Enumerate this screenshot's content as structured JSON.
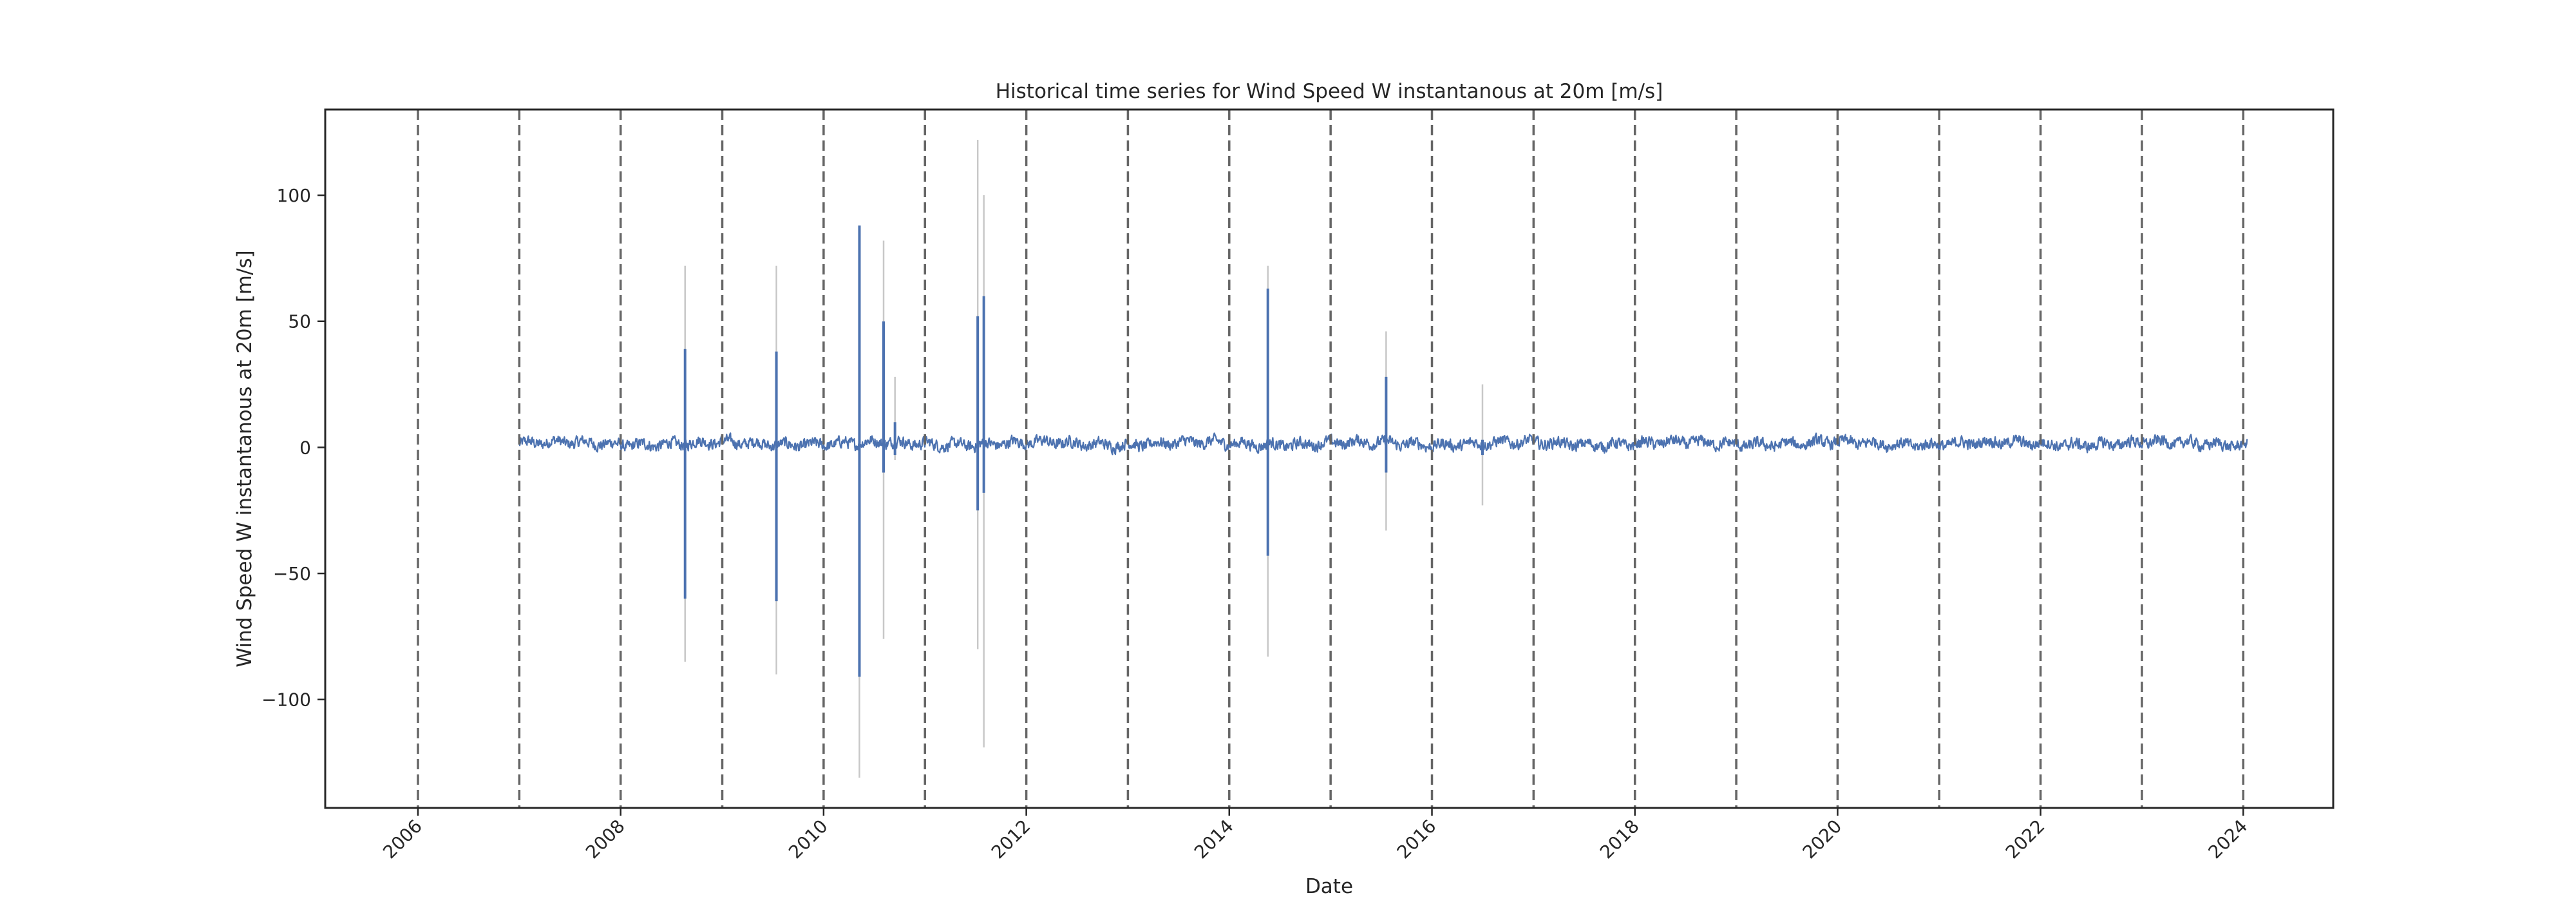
{
  "chart_data": {
    "type": "line",
    "title": "Historical time series for Wind Speed W instantanous at 20m [m/s]",
    "xlabel": "Date",
    "ylabel": "Wind Speed W instantanous at 20m [m/s]",
    "xlim": [
      "2005-02-01",
      "2024-11-20"
    ],
    "ylim": [
      -143,
      134
    ],
    "x_ticks": [
      "2006",
      "2008",
      "2010",
      "2012",
      "2014",
      "2016",
      "2018",
      "2020",
      "2022",
      "2024"
    ],
    "y_ticks": [
      -100,
      -50,
      0,
      50,
      100
    ],
    "year_lines": [
      "2006",
      "2007",
      "2008",
      "2009",
      "2010",
      "2011",
      "2012",
      "2013",
      "2014",
      "2015",
      "2016",
      "2017",
      "2018",
      "2019",
      "2020",
      "2021",
      "2022",
      "2023",
      "2024"
    ],
    "grid": false,
    "legend": false,
    "colors": {
      "series": "#4c72b0",
      "range_band": "#c8c8c8",
      "year_line": "#666666",
      "axis": "#262626"
    },
    "series": [
      {
        "start": "2007-01-01",
        "end": "2024-01-15",
        "baseline": 1.5,
        "noise_amplitude": 3.5
      }
    ],
    "spikes": [
      {
        "date": "2008-08-20",
        "low": -60,
        "high": 39,
        "range_low": -85,
        "range_high": 72
      },
      {
        "date": "2009-07-15",
        "low": -61,
        "high": 38,
        "range_low": -90,
        "range_high": 72
      },
      {
        "date": "2010-05-10",
        "low": -91,
        "high": 88,
        "range_low": -131,
        "range_high": 88
      },
      {
        "date": "2010-08-05",
        "low": -10,
        "high": 50,
        "range_low": -76,
        "range_high": 82
      },
      {
        "date": "2010-09-15",
        "low": -3,
        "high": 10,
        "range_low": -5,
        "range_high": 28
      },
      {
        "date": "2011-07-10",
        "low": -25,
        "high": 52,
        "range_low": -80,
        "range_high": 122
      },
      {
        "date": "2011-08-01",
        "low": -18,
        "high": 60,
        "range_low": -119,
        "range_high": 100
      },
      {
        "date": "2014-05-20",
        "low": -43,
        "high": 63,
        "range_low": -83,
        "range_high": 72
      },
      {
        "date": "2015-07-20",
        "low": -10,
        "high": 28,
        "range_low": -33,
        "range_high": 46
      },
      {
        "date": "2016-07-01",
        "low": -3,
        "high": 3,
        "range_low": -23,
        "range_high": 25
      }
    ]
  }
}
